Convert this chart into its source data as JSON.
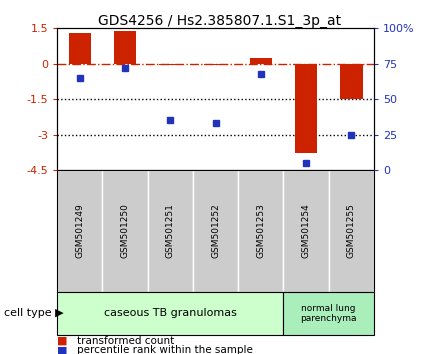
{
  "title": "GDS4256 / Hs2.385807.1.S1_3p_at",
  "samples": [
    "GSM501249",
    "GSM501250",
    "GSM501251",
    "GSM501252",
    "GSM501253",
    "GSM501254",
    "GSM501255"
  ],
  "red_values": [
    1.3,
    1.4,
    -0.05,
    -0.05,
    0.25,
    -3.8,
    -1.5
  ],
  "blue_values_pct": [
    65,
    72,
    35,
    33,
    68,
    5,
    25
  ],
  "ylim_left": [
    -4.5,
    1.5
  ],
  "yticks_left": [
    1.5,
    0,
    -1.5,
    -3,
    -4.5
  ],
  "ytick_labels_left": [
    "1.5",
    "0",
    "-1.5",
    "-3",
    "-4.5"
  ],
  "ylim_right": [
    0,
    100
  ],
  "yticks_right": [
    0,
    25,
    50,
    75,
    100
  ],
  "ytick_labels_right": [
    "0",
    "25",
    "50",
    "75",
    "100%"
  ],
  "red_color": "#cc2200",
  "blue_color": "#2233bb",
  "hline_color": "#cc2200",
  "dotted_line_color": "#000000",
  "bar_width": 0.5,
  "group1_label": "caseous TB granulomas",
  "group2_label": "normal lung\nparenchyma",
  "group1_color": "#ccffcc",
  "group2_color": "#aaeebb",
  "cell_type_label": "cell type",
  "legend1_label": "transformed count",
  "legend2_label": "percentile rank within the sample",
  "bg_color": "#ffffff",
  "sample_box_color": "#cccccc"
}
